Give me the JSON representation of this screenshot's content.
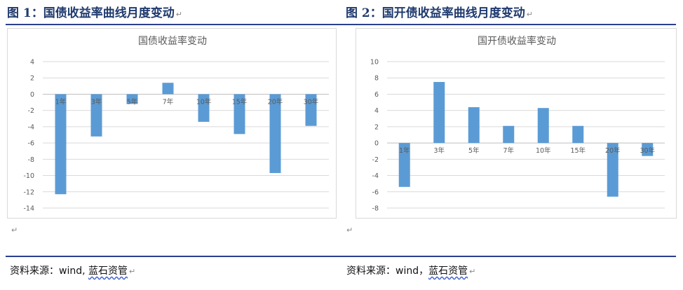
{
  "figures": [
    {
      "caption": "图 1：国债收益率曲线月度变动",
      "source_prefix": "资料来源：wind, ",
      "source_brand": "蓝石资管"
    },
    {
      "caption": "图 2：国开债收益率曲线月度变动",
      "source_prefix": "资料来源：wind，",
      "source_brand": "蓝石资管"
    }
  ],
  "chart_data": [
    {
      "type": "bar",
      "title": "国债收益率变动",
      "categories": [
        "1年",
        "3年",
        "5年",
        "7年",
        "10年",
        "15年",
        "20年",
        "30年"
      ],
      "values": [
        -12.3,
        -5.2,
        -1.2,
        1.4,
        -3.4,
        -4.9,
        -9.7,
        -3.9
      ],
      "ylim": [
        -14,
        4
      ],
      "yticks": [
        4,
        2,
        0,
        -2,
        -4,
        -6,
        -8,
        -10,
        -12,
        -14
      ],
      "grid": true,
      "color": "#5b9bd5"
    },
    {
      "type": "bar",
      "title": "国开债收益率变动",
      "categories": [
        "1年",
        "3年",
        "5年",
        "7年",
        "10年",
        "15年",
        "20年",
        "30年"
      ],
      "values": [
        -5.4,
        7.5,
        4.4,
        2.1,
        4.3,
        2.1,
        -6.6,
        -1.6
      ],
      "ylim": [
        -8,
        10
      ],
      "yticks": [
        10,
        8,
        6,
        4,
        2,
        0,
        -2,
        -4,
        -6,
        -8
      ],
      "grid": true,
      "color": "#5b9bd5"
    }
  ]
}
